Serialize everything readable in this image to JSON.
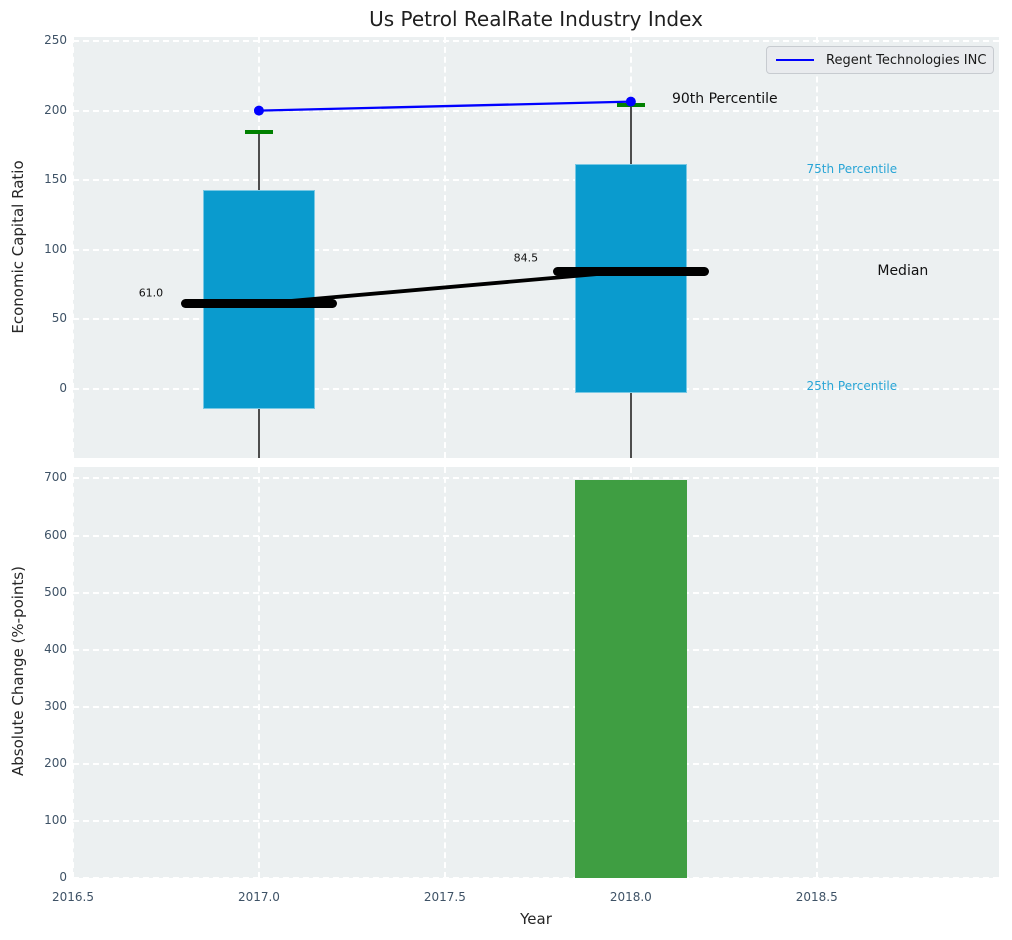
{
  "title": "Us Petrol RealRate Industry Index",
  "xlabel": "Year",
  "legend": {
    "label": "Regent Technologies INC"
  },
  "annotations": {
    "p90": "90th Percentile",
    "p75": "75th Percentile",
    "median": "Median",
    "p25": "25th Percentile",
    "median_value_2017": "61.0",
    "median_value_2018": "84.5"
  },
  "colors": {
    "axes_background": "#ecf0f1",
    "grid": "#ffffff",
    "box_fill": "#0a9bce",
    "bar_fill": "#3f9e42",
    "company_line": "#0000ff",
    "p90_marker": "#008000",
    "median_line": "#000000",
    "whisker": "#4d4d4d",
    "tick_label": "#3e5266",
    "percentile_label_blue": "#29a5d6",
    "title_text": "#1f1f1f"
  },
  "x_axis": {
    "tick_labels": [
      "2016.5",
      "2017.0",
      "2017.5",
      "2018.0",
      "2018.5"
    ],
    "tick_values": [
      2016.5,
      2017.0,
      2017.5,
      2018.0,
      2018.5
    ],
    "range": [
      2016.5,
      2018.99
    ]
  },
  "chart_data": [
    {
      "type": "box",
      "title": "Us Petrol RealRate Industry Index",
      "ylabel": "Economic Capital Ratio",
      "ylim": [
        -50,
        253
      ],
      "yticks": [
        0,
        50,
        100,
        150,
        200,
        250
      ],
      "grid": true,
      "legend_position": "upper right",
      "boxes": [
        {
          "year": 2017,
          "p25": -14.5,
          "median": 61.0,
          "p75": 143.0,
          "p90": 184.5
        },
        {
          "year": 2018,
          "p25": -3.0,
          "median": 84.5,
          "p75": 161.5,
          "p90": 204.0
        }
      ],
      "median_trend": {
        "x": [
          2017,
          2018
        ],
        "values": [
          61.0,
          84.5
        ]
      },
      "series": [
        {
          "name": "Regent Technologies INC",
          "x": [
            2017,
            2018
          ],
          "values": [
            200.0,
            206.5
          ]
        }
      ]
    },
    {
      "type": "bar",
      "ylabel": "Absolute Change (%-points)",
      "ylim": [
        0,
        720
      ],
      "yticks": [
        0,
        100,
        200,
        300,
        400,
        500,
        600,
        700
      ],
      "grid": true,
      "categories": [
        2018
      ],
      "values": [
        698
      ]
    }
  ]
}
